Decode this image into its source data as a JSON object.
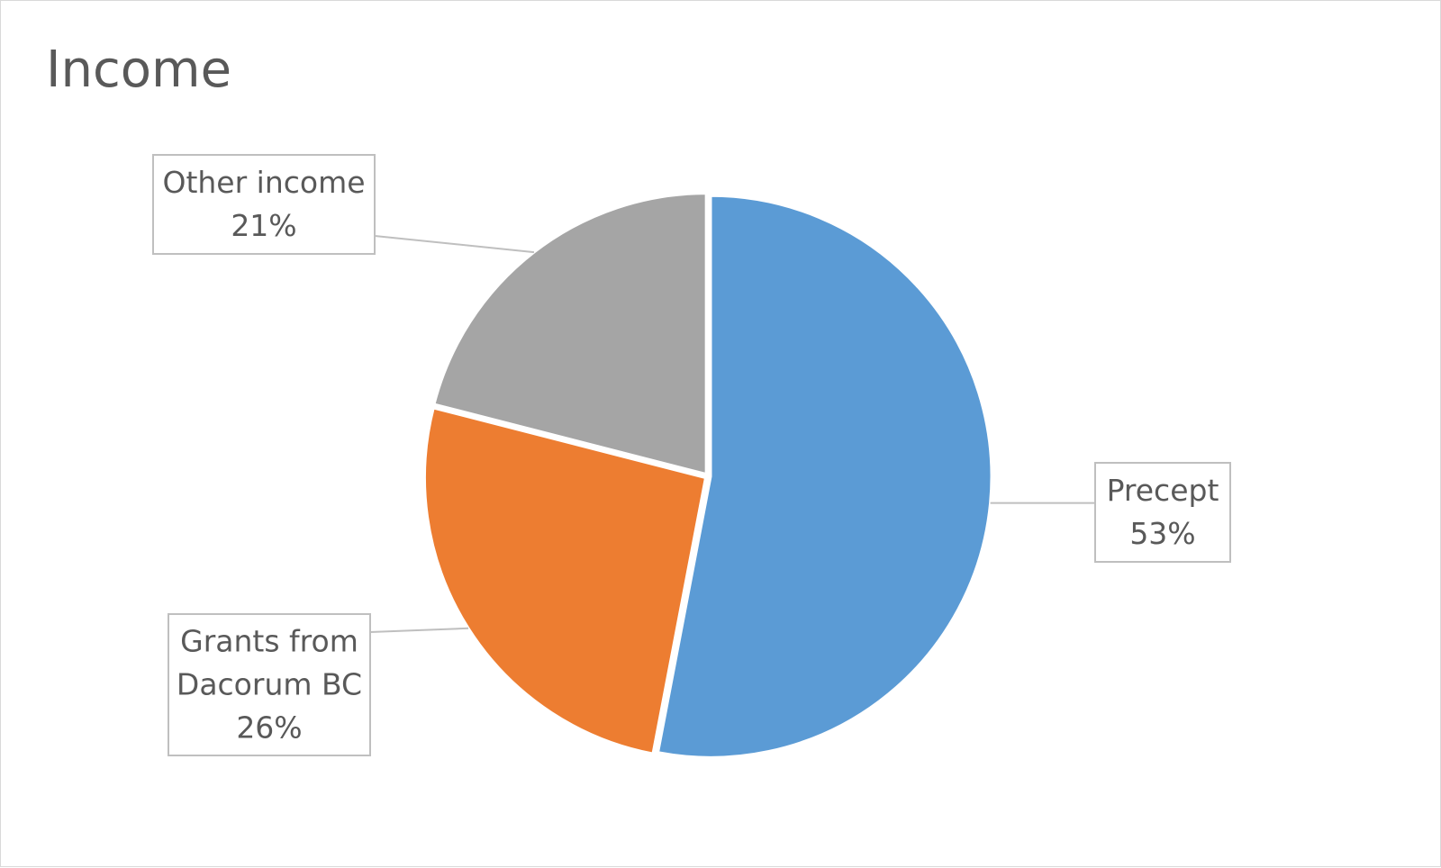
{
  "chart_data": {
    "type": "pie",
    "title": "Income",
    "slices": [
      {
        "label_lines": [
          "Precept"
        ],
        "percent_label": "53%",
        "value": 53,
        "color": "#5b9bd5"
      },
      {
        "label_lines": [
          "Grants from",
          "Dacorum BC"
        ],
        "percent_label": "26%",
        "value": 26,
        "color": "#ed7d31"
      },
      {
        "label_lines": [
          "Other income"
        ],
        "percent_label": "21%",
        "value": 21,
        "color": "#a5a5a5"
      }
    ],
    "start_angle_deg": 0,
    "direction": "clockwise",
    "legend": "none"
  }
}
